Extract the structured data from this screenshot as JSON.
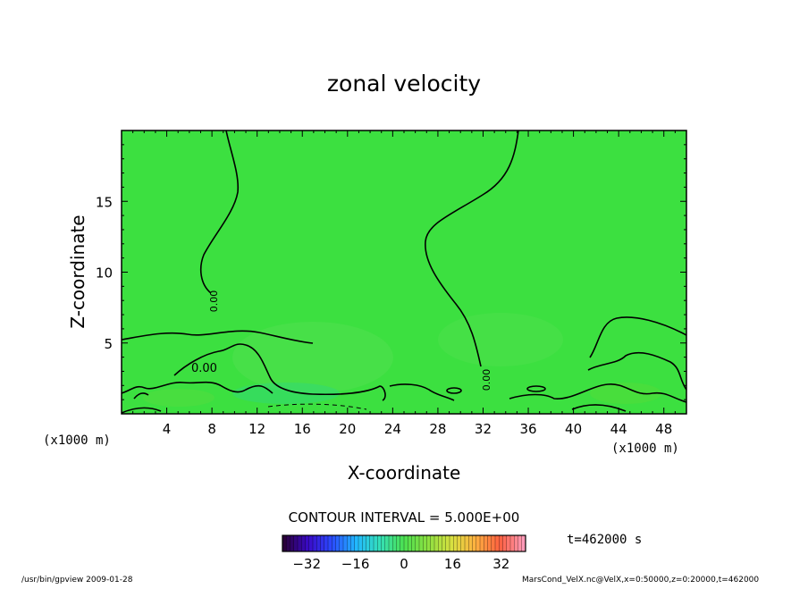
{
  "chart_data": {
    "type": "heatmap",
    "title": "zonal velocity",
    "xlabel": "X-coordinate",
    "ylabel": "Z-coordinate",
    "x_unit_label": "(x1000 m)",
    "xlim": [
      0,
      50
    ],
    "ylim": [
      0,
      20
    ],
    "x_ticks": [
      4,
      8,
      12,
      16,
      20,
      24,
      28,
      32,
      36,
      40,
      44,
      48
    ],
    "y_ticks": [
      5,
      10,
      15
    ],
    "contour_labels": [
      "0.00",
      "0.00",
      "0.00"
    ],
    "contour_interval_text": "CONTOUR INTERVAL = 5.000E+00",
    "colorbar": {
      "range": [
        -40,
        40
      ],
      "ticks": [
        -32,
        -16,
        0,
        16,
        32
      ],
      "colors": [
        "#2a003a",
        "#3a0ac8",
        "#2a4cff",
        "#22b8ff",
        "#34e0b8",
        "#4ce050",
        "#8ce040",
        "#d8e040",
        "#ffb040",
        "#ff6040",
        "#ff9ab8"
      ]
    },
    "field_color": "#3ce040",
    "grid": false,
    "legend": "none"
  },
  "annotations": {
    "time": "t=462000 s",
    "footer_left": "/usr/bin/gpview  2009-01-28",
    "footer_right": "MarsCond_VelX.nc@VelX,x=0:50000,z=0:20000,t=462000"
  }
}
